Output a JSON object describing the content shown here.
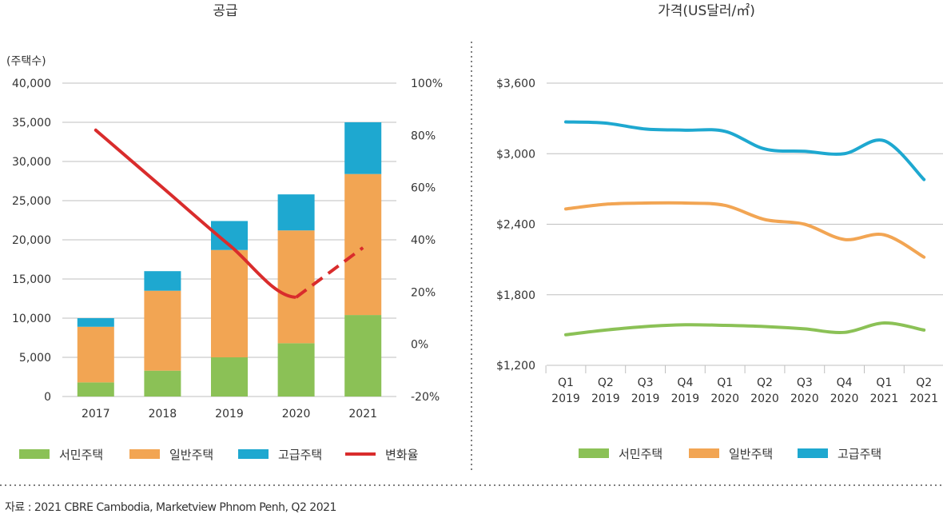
{
  "source": "자료 : 2021 CBRE Cambodia, Marketview Phnom Penh, Q2 2021",
  "chart_data": [
    {
      "type": "bar",
      "stacked": true,
      "title": "공급",
      "ylabel": "(주택수)",
      "ylim": [
        0,
        40000
      ],
      "yticks": [
        "0",
        "5,000",
        "10,000",
        "15,000",
        "20,000",
        "25,000",
        "30,000",
        "35,000",
        "40,000"
      ],
      "y2lim": [
        -20,
        100
      ],
      "y2ticks": [
        "-20%",
        "0%",
        "20%",
        "40%",
        "60%",
        "80%",
        "100%"
      ],
      "categories": [
        "2017",
        "2018",
        "2019",
        "2020",
        "2021"
      ],
      "series": [
        {
          "name": "서민주택",
          "color": "#8bc156",
          "values": [
            1800,
            3300,
            5000,
            6800,
            10400
          ]
        },
        {
          "name": "일반주택",
          "color": "#f2a553",
          "values": [
            7100,
            10200,
            13700,
            14400,
            18000
          ]
        },
        {
          "name": "고급주택",
          "color": "#1ea8d0",
          "values": [
            1100,
            2500,
            3700,
            4600,
            6600
          ]
        }
      ],
      "line": {
        "name": "변화율",
        "color": "#d92c2c",
        "axis": "y2",
        "values": [
          82,
          60,
          38,
          18,
          37
        ]
      },
      "legend": [
        "서민주택",
        "일반주택",
        "고급주택",
        "변화율"
      ]
    },
    {
      "type": "line",
      "title": "가격(US달러/㎡)",
      "ylim": [
        1200,
        3600
      ],
      "yticks": [
        "$1,200",
        "$1,800",
        "$2,400",
        "$3,000",
        "$3,600"
      ],
      "categories": [
        [
          "Q1",
          "2019"
        ],
        [
          "Q2",
          "2019"
        ],
        [
          "Q3",
          "2019"
        ],
        [
          "Q4",
          "2019"
        ],
        [
          "Q1",
          "2020"
        ],
        [
          "Q2",
          "2020"
        ],
        [
          "Q3",
          "2020"
        ],
        [
          "Q4",
          "2020"
        ],
        [
          "Q1",
          "2021"
        ],
        [
          "Q2",
          "2021"
        ]
      ],
      "series": [
        {
          "name": "서민주택",
          "color": "#8bc156",
          "values": [
            1460,
            1500,
            1530,
            1545,
            1540,
            1530,
            1510,
            1480,
            1560,
            1500
          ]
        },
        {
          "name": "일반주택",
          "color": "#f2a553",
          "values": [
            2530,
            2570,
            2580,
            2580,
            2560,
            2440,
            2400,
            2270,
            2310,
            2120
          ]
        },
        {
          "name": "고급주택",
          "color": "#1ea8d0",
          "values": [
            3270,
            3260,
            3210,
            3200,
            3190,
            3040,
            3020,
            3000,
            3110,
            2780
          ]
        }
      ],
      "legend": [
        "서민주택",
        "일반주택",
        "고급주택"
      ]
    }
  ]
}
